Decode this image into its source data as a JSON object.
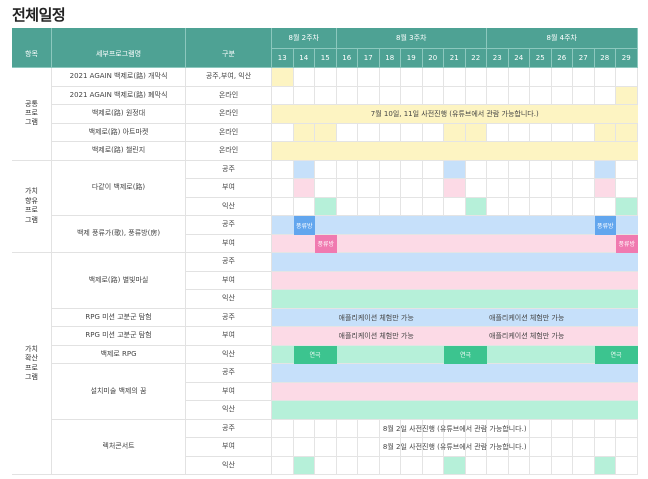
{
  "title": "전체일정",
  "colors": {
    "header": "#4ea294",
    "yellow": "#fdf4c2",
    "blue": "#c6e0fa",
    "pink": "#fcdae6",
    "mint": "#b6f0d9",
    "green": "#3cc48f",
    "blue_dark": "#62a6ee",
    "pink_dark": "#f07ab0"
  },
  "headers": {
    "area": "항목",
    "program": "세부프로그램명",
    "type": "구분",
    "weeks": [
      {
        "label": "8월 2주차",
        "span": 3
      },
      {
        "label": "8월 3주차",
        "span": 7
      },
      {
        "label": "8월 4주차",
        "span": 7
      }
    ],
    "days": [
      "13",
      "14",
      "15",
      "16",
      "17",
      "18",
      "19",
      "20",
      "21",
      "22",
      "23",
      "24",
      "25",
      "26",
      "27",
      "28",
      "29"
    ]
  },
  "rows": [
    {
      "area": "공통\n프로\n그램",
      "area_rows": 5,
      "program": "2021 AGAIN 백제로(路) 개막식",
      "program_rows": 1,
      "type": "공주,부여, 익산",
      "cells": {
        "0": "yellow"
      }
    },
    {
      "program": "2021 AGAIN 백제로(路) 폐막식",
      "program_rows": 1,
      "type": "온라인",
      "cells": {
        "16": "yellow"
      }
    },
    {
      "program": "백제로(路) 원정대",
      "program_rows": 1,
      "type": "온라인",
      "spans": [
        {
          "from": 0,
          "to": 16,
          "color": "yellow",
          "text": "7월 10일, 11일 사전진행 (유튜브에서 관람 가능합니다.)",
          "align": "center"
        }
      ]
    },
    {
      "program": "백제로(路) 아트마켓",
      "program_rows": 1,
      "type": "온라인",
      "cells": {
        "1": "yellow",
        "2": "yellow",
        "8": "yellow",
        "9": "yellow",
        "15": "yellow",
        "16": "yellow"
      }
    },
    {
      "program": "백제로(路) 챌린지",
      "program_rows": 1,
      "type": "온라인",
      "spans": [
        {
          "from": 0,
          "to": 16,
          "color": "yellow"
        }
      ]
    },
    {
      "area": "가치\n향유\n프로\n그램",
      "area_rows": 5,
      "program": "다같이 백제로(路)",
      "program_rows": 3,
      "type": "공주",
      "cells": {
        "1": "blue",
        "8": "blue",
        "15": "blue"
      }
    },
    {
      "type": "부여",
      "cells": {
        "1": "pink",
        "8": "pink",
        "15": "pink"
      }
    },
    {
      "type": "익산",
      "cells": {
        "2": "mint",
        "9": "mint",
        "16": "mint"
      }
    },
    {
      "program": "백제 풍류가(歌), 풍류방(房)",
      "program_rows": 2,
      "type": "공주",
      "spans": [
        {
          "from": 0,
          "to": 16,
          "color": "blue"
        }
      ],
      "labels": [
        {
          "col": 1,
          "color": "blue_dark",
          "text": "풍류방"
        },
        {
          "col": 15,
          "color": "blue_dark",
          "text": "풍류방"
        }
      ]
    },
    {
      "type": "부여",
      "spans": [
        {
          "from": 0,
          "to": 16,
          "color": "pink"
        }
      ],
      "labels": [
        {
          "col": 2,
          "color": "pink_dark",
          "text": "풍류방"
        },
        {
          "col": 16,
          "color": "pink_dark",
          "text": "풍류방"
        }
      ]
    },
    {
      "area": "가치\n확산\n프로\n그램",
      "area_rows": 12,
      "program": "백제로(路) 별빛마실",
      "program_rows": 3,
      "type": "공주",
      "spans": [
        {
          "from": 0,
          "to": 16,
          "color": "blue"
        }
      ]
    },
    {
      "type": "부여",
      "spans": [
        {
          "from": 0,
          "to": 16,
          "color": "pink"
        }
      ]
    },
    {
      "type": "익산",
      "spans": [
        {
          "from": 0,
          "to": 16,
          "color": "mint"
        }
      ]
    },
    {
      "program": "RPG 미션 고분군 탐험",
      "program_rows": 1,
      "type": "공주",
      "spans": [
        {
          "from": 0,
          "to": 16,
          "color": "blue"
        }
      ],
      "texts": [
        {
          "col": 3,
          "text": "애플리케이션 체험만 가능"
        },
        {
          "col": 10,
          "text": "애플리케이션 체험만 가능"
        }
      ]
    },
    {
      "program": "RPG 미션 고분군 탐험",
      "program_rows": 1,
      "type": "부여",
      "spans": [
        {
          "from": 0,
          "to": 16,
          "color": "pink"
        }
      ],
      "texts": [
        {
          "col": 3,
          "text": "애플리케이션 체험만 가능"
        },
        {
          "col": 10,
          "text": "애플리케이션 체험만 가능"
        }
      ]
    },
    {
      "program": "백제로 RPG",
      "program_rows": 1,
      "type": "익산",
      "spans": [
        {
          "from": 0,
          "to": 16,
          "color": "mint"
        }
      ],
      "labels": [
        {
          "col": 1,
          "span": 2,
          "color": "green",
          "text": "연극"
        },
        {
          "col": 8,
          "span": 2,
          "color": "green",
          "text": "연극"
        },
        {
          "col": 15,
          "span": 2,
          "color": "green",
          "text": "연극"
        }
      ]
    },
    {
      "program": "설치미술 백제의 꿈",
      "program_rows": 3,
      "type": "공주",
      "spans": [
        {
          "from": 0,
          "to": 16,
          "color": "blue"
        }
      ]
    },
    {
      "type": "부여",
      "spans": [
        {
          "from": 0,
          "to": 16,
          "color": "pink"
        }
      ]
    },
    {
      "type": "익산",
      "spans": [
        {
          "from": 0,
          "to": 16,
          "color": "mint"
        }
      ]
    },
    {
      "program": "렉처콘서트",
      "program_rows": 3,
      "type": "공주",
      "spans": [
        {
          "from": 0,
          "to": 16,
          "color": "none",
          "text": "8월 2일 사전진행 (유튜브에서 관람 가능합니다.)",
          "align": "center"
        }
      ]
    },
    {
      "type": "부여",
      "spans": [
        {
          "from": 0,
          "to": 16,
          "color": "none",
          "text": "8월 2일 사전진행 (유튜브에서 관람 가능합니다.)",
          "align": "center"
        }
      ]
    },
    {
      "type": "익산",
      "cells": {
        "1": "mint",
        "8": "mint",
        "15": "mint"
      }
    }
  ]
}
